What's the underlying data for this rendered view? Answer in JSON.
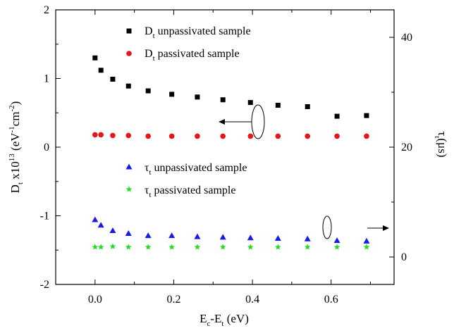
{
  "chart_data": {
    "type": "scatter",
    "xlabel": {
      "main": "E",
      "sub1": "c",
      "mid": "-E",
      "sub2": "t",
      "tail": " (eV)"
    },
    "ylabel_left": {
      "main": "D",
      "sub": "t",
      "mid": " x10",
      "sup": "13",
      "unit_a": " (eV",
      "sup2": "-1",
      "unit_b": "cm",
      "sup3": "-2",
      "end": ")"
    },
    "ylabel_right": {
      "main": "τ",
      "sub": "t",
      "unit": "(μs)"
    },
    "xlim": [
      -0.1,
      0.76
    ],
    "ylim_left": [
      -2,
      2
    ],
    "ylim_right": [
      -5,
      45
    ],
    "x_ticks": [
      {
        "value": 0.0,
        "label": "0.0"
      },
      {
        "value": 0.2,
        "label": "0.2"
      },
      {
        "value": 0.4,
        "label": "0.4"
      },
      {
        "value": 0.6,
        "label": "0.6"
      }
    ],
    "y_left_ticks": [
      {
        "value": -2,
        "label": "-2"
      },
      {
        "value": -1,
        "label": "-1"
      },
      {
        "value": 0,
        "label": "0"
      },
      {
        "value": 1,
        "label": "1"
      },
      {
        "value": 2,
        "label": "2"
      }
    ],
    "y_right_ticks": [
      {
        "value": 0,
        "label": "0"
      },
      {
        "value": 20,
        "label": "20"
      },
      {
        "value": 40,
        "label": "40"
      }
    ],
    "series": [
      {
        "name": "unpassivated sample",
        "legend_symbol": "D",
        "legend_sub": "t",
        "axis": "left",
        "marker": "square",
        "color": "#000000",
        "x": [
          0.0,
          0.015,
          0.045,
          0.085,
          0.135,
          0.195,
          0.26,
          0.325,
          0.395,
          0.465,
          0.54,
          0.615,
          0.69
        ],
        "y": [
          1.3,
          1.12,
          0.99,
          0.89,
          0.82,
          0.77,
          0.73,
          0.69,
          0.65,
          0.61,
          0.59,
          0.45,
          0.46
        ]
      },
      {
        "name": "passivated sample",
        "legend_symbol": "D",
        "legend_sub": "t",
        "axis": "left",
        "marker": "circle",
        "color": "#e8141a",
        "x": [
          0.0,
          0.015,
          0.045,
          0.085,
          0.135,
          0.195,
          0.26,
          0.325,
          0.395,
          0.465,
          0.54,
          0.615,
          0.69
        ],
        "y": [
          0.18,
          0.18,
          0.17,
          0.17,
          0.16,
          0.16,
          0.16,
          0.16,
          0.16,
          0.16,
          0.16,
          0.16,
          0.16
        ]
      },
      {
        "name": "unpassivated sample",
        "legend_symbol": "τ",
        "legend_sub": "t",
        "axis": "right",
        "marker": "triangle",
        "color": "#1a1ae6",
        "x": [
          0.0,
          0.015,
          0.045,
          0.085,
          0.135,
          0.195,
          0.26,
          0.325,
          0.395,
          0.465,
          0.54,
          0.615,
          0.69
        ],
        "y": [
          6.8,
          5.8,
          4.8,
          4.3,
          3.9,
          3.9,
          3.7,
          3.6,
          3.5,
          3.4,
          3.3,
          3.0,
          2.9
        ]
      },
      {
        "name": "passivated sample",
        "legend_symbol": "τ",
        "legend_sub": "t",
        "axis": "right",
        "marker": "star",
        "color": "#22dd22",
        "x": [
          0.0,
          0.015,
          0.045,
          0.085,
          0.135,
          0.195,
          0.26,
          0.325,
          0.395,
          0.465,
          0.54,
          0.615,
          0.69
        ],
        "y": [
          1.8,
          1.8,
          1.9,
          1.8,
          1.8,
          1.8,
          1.8,
          1.8,
          1.8,
          1.8,
          1.8,
          1.8,
          1.8
        ]
      }
    ],
    "legend_placement": "inside-upper",
    "grid": false
  }
}
